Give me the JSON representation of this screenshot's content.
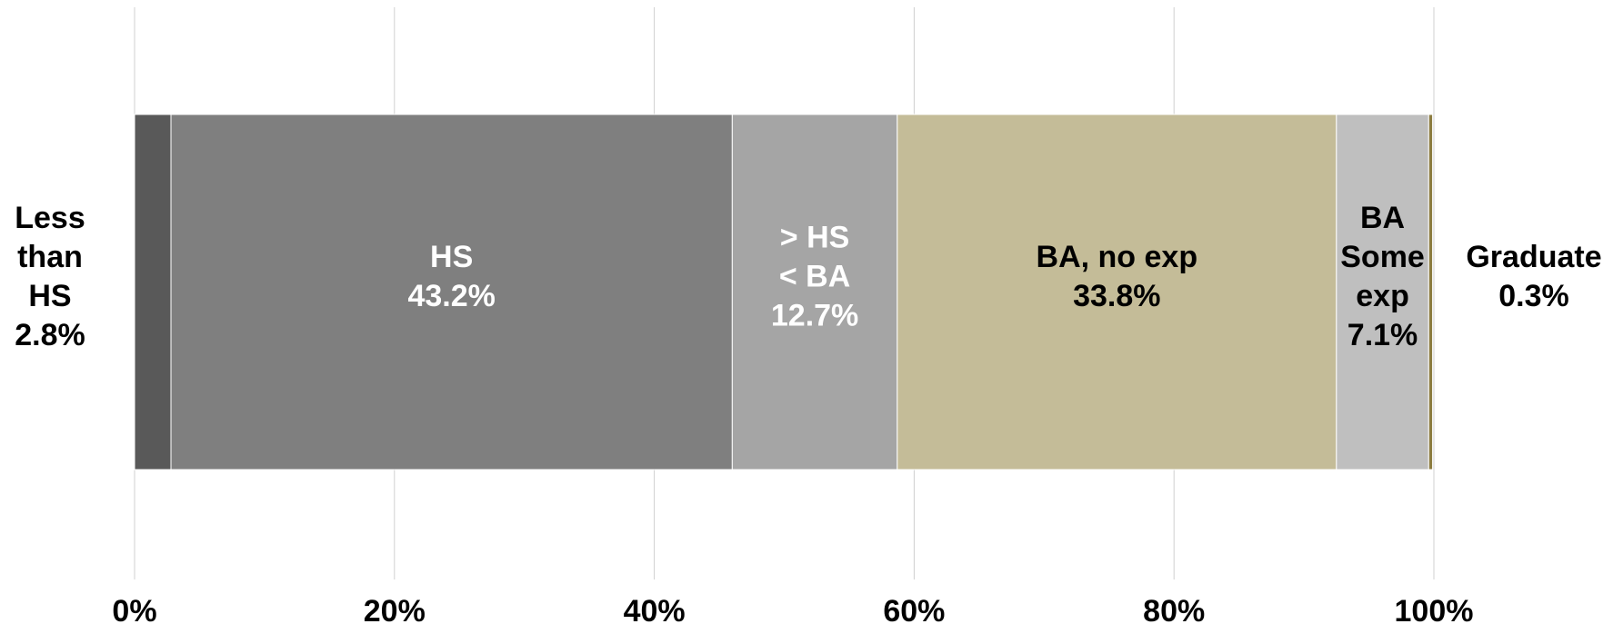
{
  "chart_data": {
    "type": "bar",
    "orientation": "horizontal",
    "stacked": true,
    "title": "",
    "xlabel": "",
    "ylabel": "",
    "xlim": [
      0,
      100
    ],
    "grid": "vertical",
    "x_ticks": [
      "0%",
      "20%",
      "40%",
      "60%",
      "80%",
      "100%"
    ],
    "x_tick_values": [
      0,
      20,
      40,
      60,
      80,
      100
    ],
    "series": [
      {
        "label_lines": [
          "Less",
          "than",
          "HS",
          "2.8%"
        ],
        "value": 2.8,
        "color": "#595959",
        "label_color": "#000000",
        "label_position": "outside-left"
      },
      {
        "label_lines": [
          "HS",
          "43.2%"
        ],
        "value": 43.2,
        "color": "#7f7f7f",
        "label_color": "#ffffff",
        "label_position": "inside"
      },
      {
        "label_lines": [
          "> HS",
          "< BA",
          "12.7%"
        ],
        "value": 12.7,
        "color": "#a5a5a5",
        "label_color": "#ffffff",
        "label_position": "inside"
      },
      {
        "label_lines": [
          "BA, no exp",
          "33.8%"
        ],
        "value": 33.8,
        "color": "#c4bc98",
        "label_color": "#000000",
        "label_position": "inside"
      },
      {
        "label_lines": [
          "BA",
          "Some",
          "exp",
          "7.1%"
        ],
        "value": 7.1,
        "color": "#bfbfbf",
        "label_color": "#000000",
        "label_position": "inside"
      },
      {
        "label_lines": [
          "Graduate",
          "0.3%"
        ],
        "value": 0.3,
        "color": "#8c7c40",
        "label_color": "#000000",
        "label_position": "outside-right"
      }
    ]
  }
}
